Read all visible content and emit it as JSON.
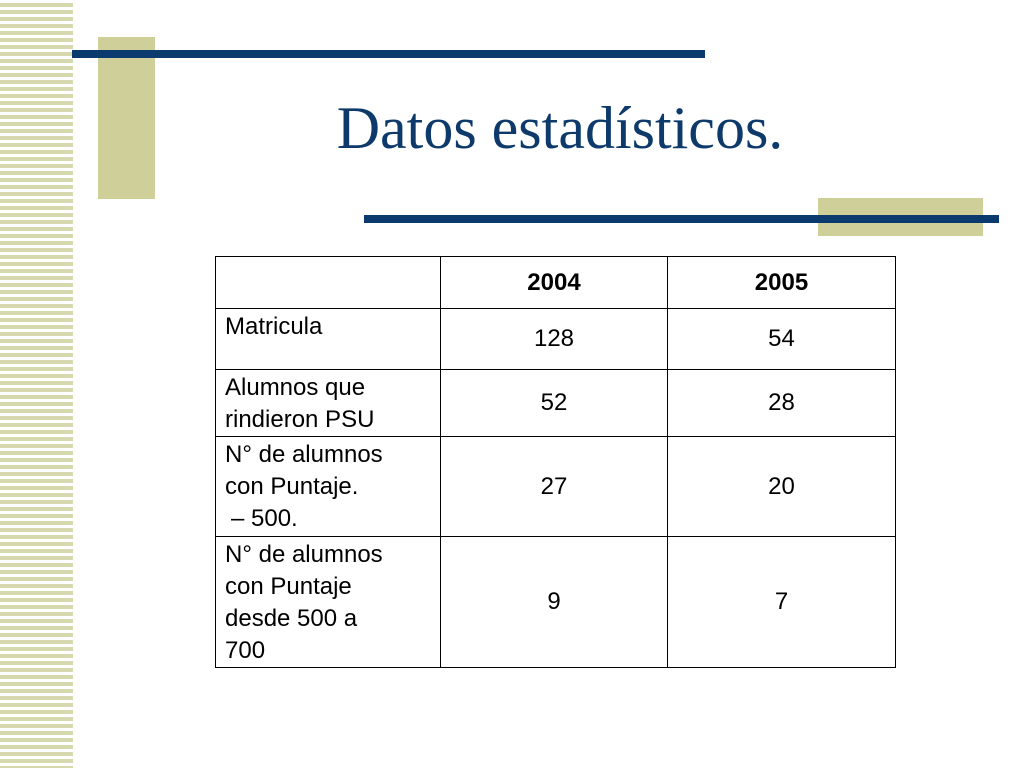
{
  "slide": {
    "title": "Datos estadísticos."
  },
  "table": {
    "headers": [
      "",
      "2004",
      "2005"
    ],
    "rows": [
      {
        "label_lines": [
          "Matricula"
        ],
        "values": [
          "128",
          "54"
        ]
      },
      {
        "label_lines": [
          "Alumnos que",
          "rindieron PSU"
        ],
        "values": [
          "52",
          "28"
        ]
      },
      {
        "label_lines": [
          "N° de alumnos",
          "con Puntaje.",
          "– 500."
        ],
        "values": [
          "27",
          "20"
        ]
      },
      {
        "label_lines": [
          "N° de alumnos",
          "con Puntaje",
          "desde 500 a",
          "700"
        ],
        "values": [
          "9",
          "7"
        ]
      }
    ]
  },
  "colors": {
    "title": "#0d3a6b",
    "accent_line": "#0a3a6e",
    "accent_block": "#cfcf9a"
  }
}
